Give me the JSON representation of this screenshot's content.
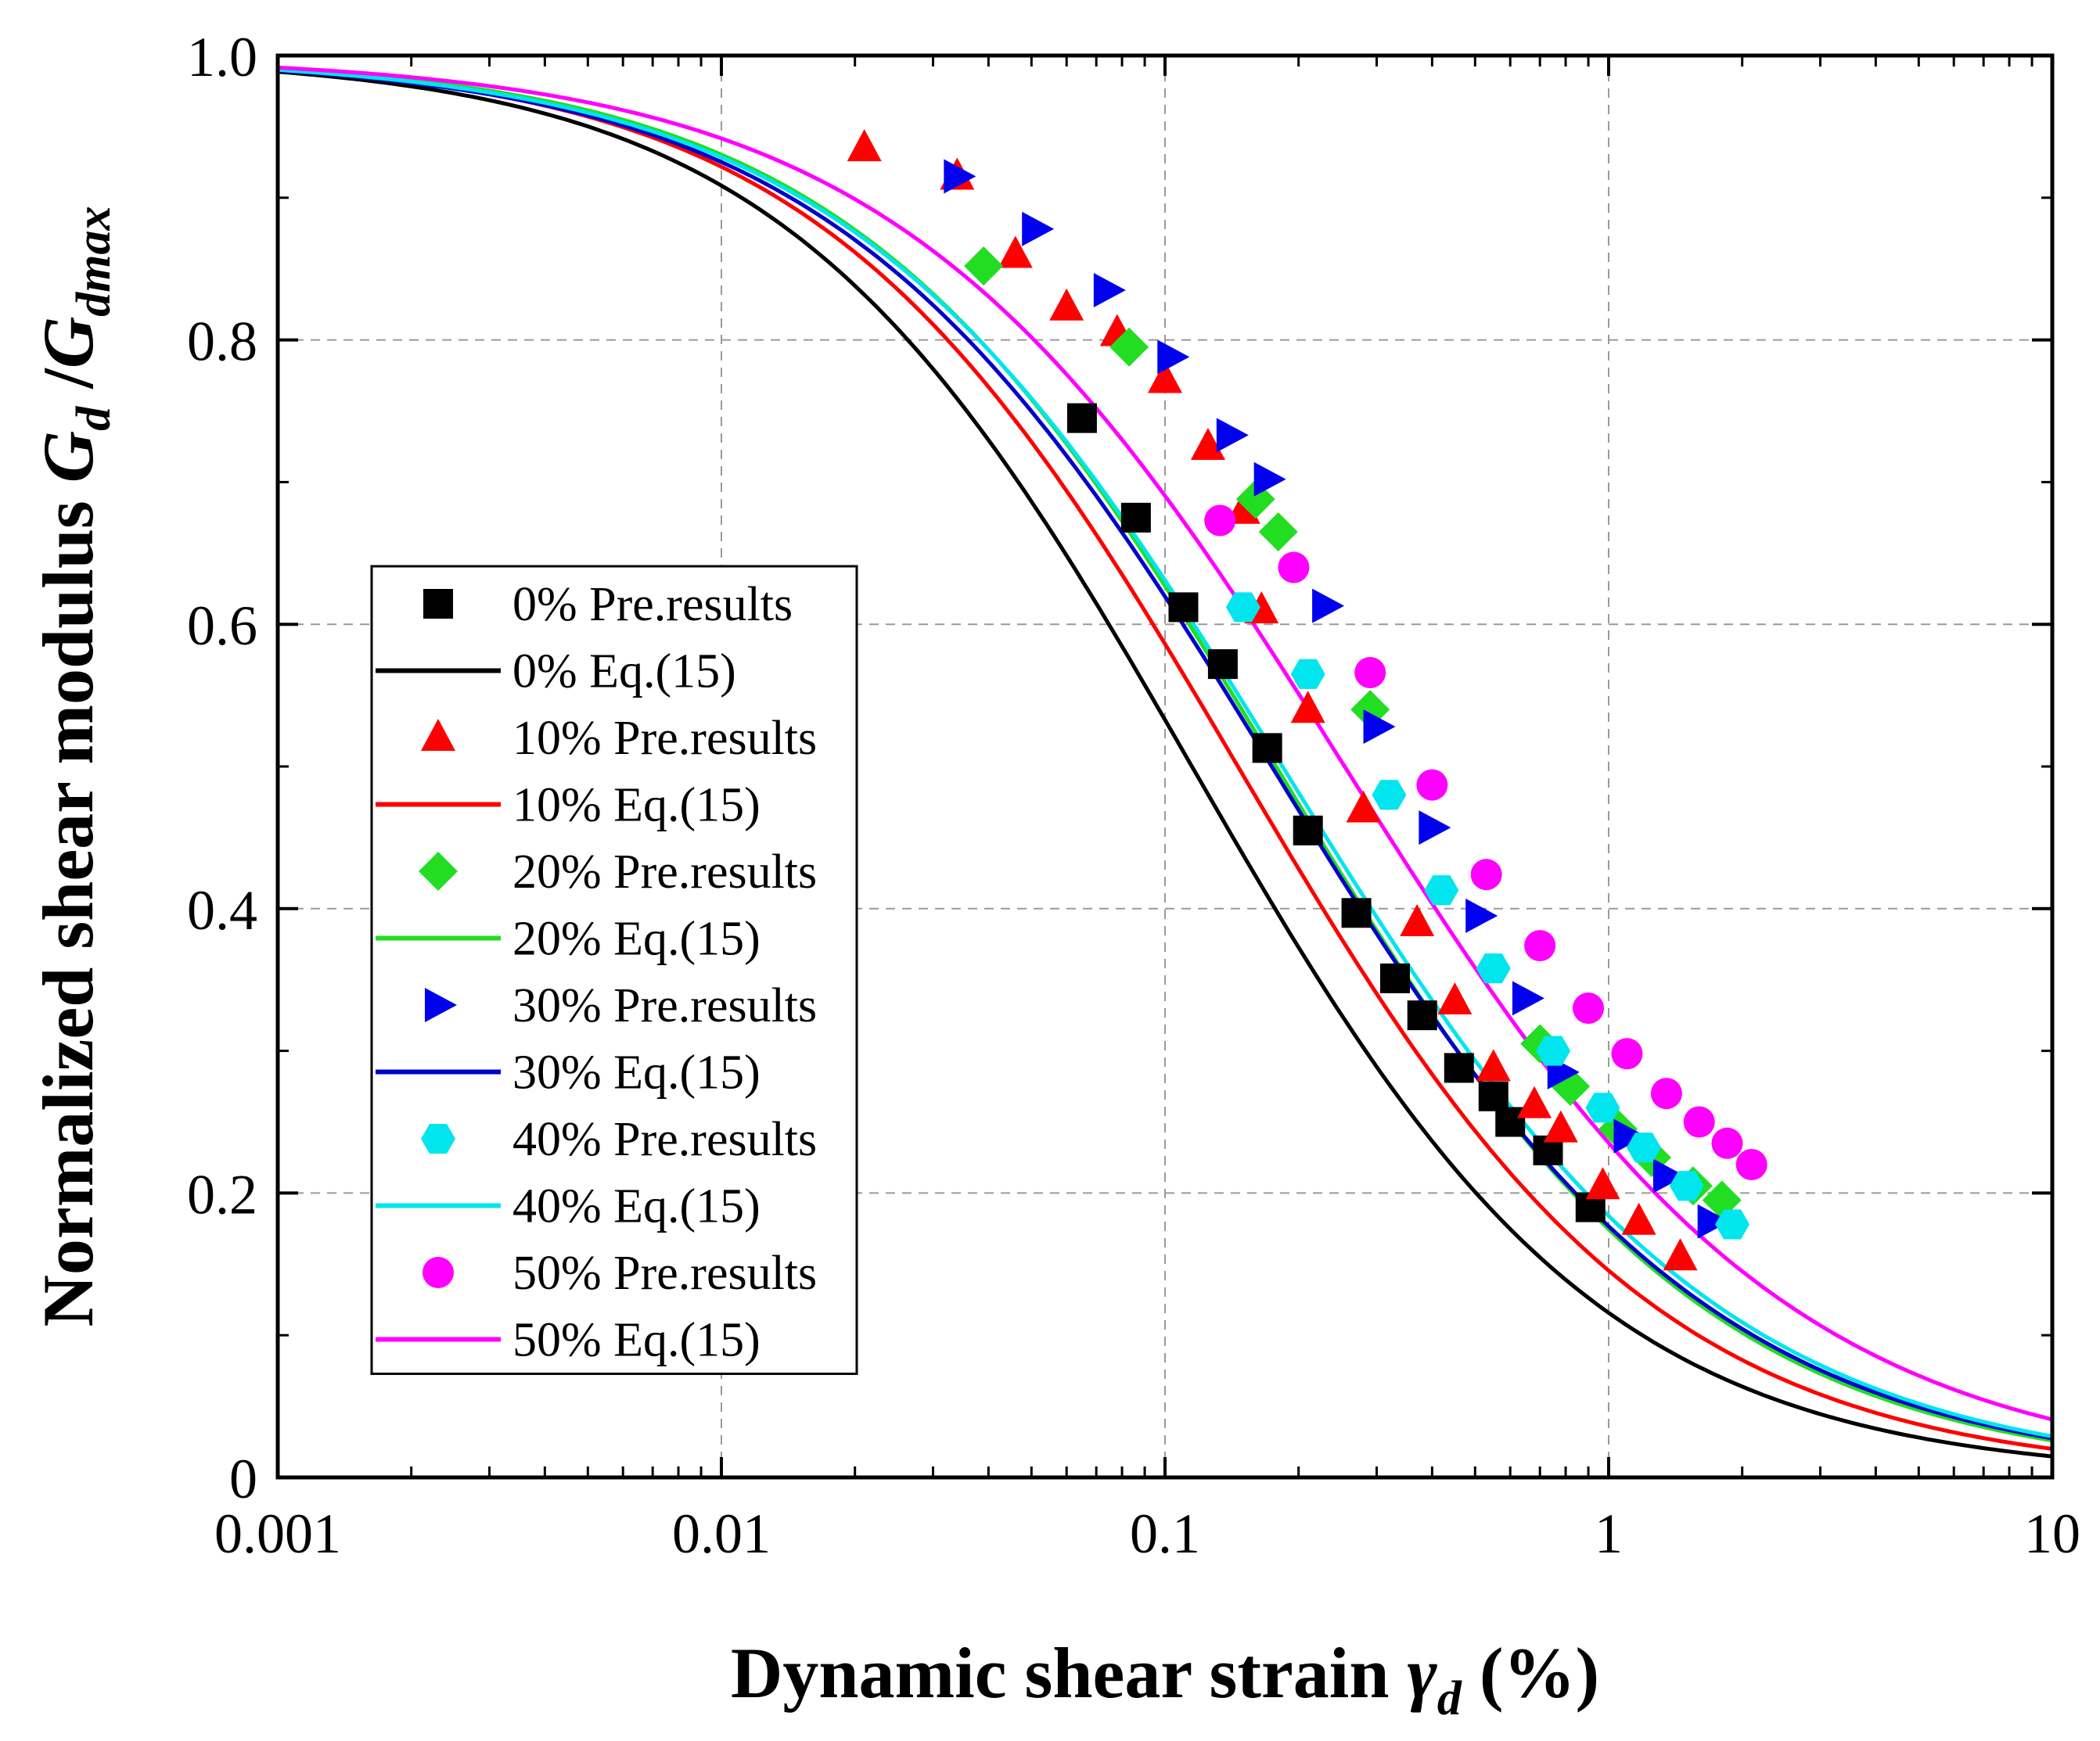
{
  "chart_data": {
    "type": "scatter",
    "xlabel": "Dynamic shear strain",
    "xsymbol": "γ",
    "xsub": "d",
    "xunit": "(%)",
    "ylabel": "Normalized shear modulus",
    "ysym1": "G",
    "ysub1": "d",
    "ysep": " /",
    "ysym2": "G",
    "ysub2": "dmax",
    "xscale": "log",
    "xlim": [
      0.001,
      10
    ],
    "ylim": [
      0,
      1.0
    ],
    "x_ticks": [
      0.001,
      0.01,
      0.1,
      1,
      10
    ],
    "x_tick_labels": [
      "0.001",
      "0.01",
      "0.1",
      "1",
      "10"
    ],
    "y_ticks": [
      0,
      0.2,
      0.4,
      0.6,
      0.8,
      1.0
    ],
    "y_tick_labels": [
      "0",
      "0.2",
      "0.4",
      "0.6",
      "0.8",
      "1.0"
    ],
    "grid": true,
    "legend_position": "left-center",
    "series": [
      {
        "name": "0% Pre.results",
        "kind": "points",
        "marker": "square",
        "color": "#000000",
        "points": [
          [
            0.065,
            0.745
          ],
          [
            0.086,
            0.675
          ],
          [
            0.11,
            0.612
          ],
          [
            0.135,
            0.572
          ],
          [
            0.17,
            0.513
          ],
          [
            0.21,
            0.455
          ],
          [
            0.27,
            0.397
          ],
          [
            0.33,
            0.351
          ],
          [
            0.38,
            0.325
          ],
          [
            0.46,
            0.288
          ],
          [
            0.55,
            0.268
          ],
          [
            0.6,
            0.25
          ],
          [
            0.73,
            0.23
          ],
          [
            0.91,
            0.19
          ]
        ]
      },
      {
        "name": "0% Eq.(15)",
        "kind": "line",
        "color": "#000000",
        "gamma_r": 0.115,
        "exponent": 0.94
      },
      {
        "name": "10% Pre.results",
        "kind": "points",
        "marker": "triangle-up",
        "color": "#ff0000",
        "points": [
          [
            0.021,
            0.935
          ],
          [
            0.034,
            0.915
          ],
          [
            0.046,
            0.86
          ],
          [
            0.06,
            0.823
          ],
          [
            0.078,
            0.805
          ],
          [
            0.1,
            0.772
          ],
          [
            0.125,
            0.725
          ],
          [
            0.15,
            0.68
          ],
          [
            0.165,
            0.61
          ],
          [
            0.21,
            0.54
          ],
          [
            0.28,
            0.47
          ],
          [
            0.37,
            0.39
          ],
          [
            0.45,
            0.335
          ],
          [
            0.55,
            0.288
          ],
          [
            0.68,
            0.262
          ],
          [
            0.78,
            0.245
          ],
          [
            0.97,
            0.205
          ],
          [
            1.17,
            0.18
          ],
          [
            1.45,
            0.155
          ]
        ]
      },
      {
        "name": "10% Eq.(15)",
        "kind": "line",
        "color": "#ff0000",
        "gamma_r": 0.146,
        "exponent": 0.92
      },
      {
        "name": "20% Pre.results",
        "kind": "points",
        "marker": "diamond",
        "color": "#22dd22",
        "points": [
          [
            0.039,
            0.852
          ],
          [
            0.083,
            0.795
          ],
          [
            0.16,
            0.688
          ],
          [
            0.18,
            0.665
          ],
          [
            0.29,
            0.54
          ],
          [
            0.7,
            0.305
          ],
          [
            0.82,
            0.275
          ],
          [
            1.05,
            0.245
          ],
          [
            1.25,
            0.225
          ],
          [
            1.55,
            0.205
          ],
          [
            1.8,
            0.195
          ]
        ]
      },
      {
        "name": "20% Eq.(15)",
        "kind": "line",
        "color": "#22dd22",
        "gamma_r": 0.178,
        "exponent": 0.9
      },
      {
        "name": "30% Pre.results",
        "kind": "points",
        "marker": "triangle-right",
        "color": "#0000ee",
        "points": [
          [
            0.034,
            0.915
          ],
          [
            0.051,
            0.878
          ],
          [
            0.074,
            0.835
          ],
          [
            0.103,
            0.788
          ],
          [
            0.14,
            0.733
          ],
          [
            0.17,
            0.702
          ],
          [
            0.23,
            0.613
          ],
          [
            0.3,
            0.528
          ],
          [
            0.4,
            0.457
          ],
          [
            0.51,
            0.395
          ],
          [
            0.65,
            0.337
          ],
          [
            0.78,
            0.285
          ],
          [
            1.1,
            0.24
          ],
          [
            1.35,
            0.212
          ],
          [
            1.7,
            0.18
          ]
        ]
      },
      {
        "name": "30% Eq.(15)",
        "kind": "line",
        "color": "#0000cc",
        "gamma_r": 0.174,
        "exponent": 0.88
      },
      {
        "name": "40% Pre.results",
        "kind": "points",
        "marker": "hexagon",
        "color": "#00e5ee",
        "points": [
          [
            0.15,
            0.612
          ],
          [
            0.21,
            0.565
          ],
          [
            0.32,
            0.48
          ],
          [
            0.42,
            0.413
          ],
          [
            0.55,
            0.358
          ],
          [
            0.75,
            0.3
          ],
          [
            0.97,
            0.26
          ],
          [
            1.2,
            0.232
          ],
          [
            1.5,
            0.205
          ],
          [
            1.9,
            0.178
          ]
        ]
      },
      {
        "name": "40% Eq.(15)",
        "kind": "line",
        "color": "#00e5ee",
        "gamma_r": 0.184,
        "exponent": 0.88
      },
      {
        "name": "50% Pre.results",
        "kind": "points",
        "marker": "circle",
        "color": "#ff00ff",
        "points": [
          [
            0.133,
            0.673
          ],
          [
            0.195,
            0.64
          ],
          [
            0.29,
            0.566
          ],
          [
            0.4,
            0.487
          ],
          [
            0.53,
            0.424
          ],
          [
            0.7,
            0.374
          ],
          [
            0.9,
            0.33
          ],
          [
            1.1,
            0.298
          ],
          [
            1.35,
            0.27
          ],
          [
            1.6,
            0.25
          ],
          [
            1.85,
            0.235
          ],
          [
            2.1,
            0.22
          ]
        ]
      },
      {
        "name": "50% Eq.(15)",
        "kind": "line",
        "color": "#ff00ff",
        "gamma_r": 0.254,
        "exponent": 0.86
      }
    ]
  }
}
